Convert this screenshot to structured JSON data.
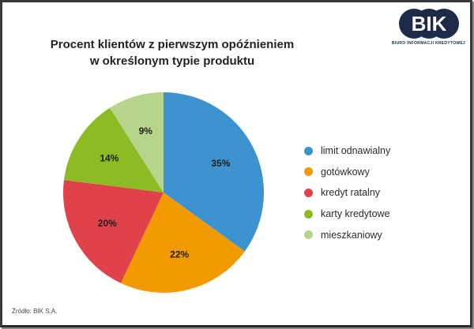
{
  "title": {
    "line1": "Procent klientów z pierwszym opóźnieniem",
    "line2": "w określonym typie produktu"
  },
  "logo": {
    "text": "BIK",
    "caption": "BIURO INFORMACJI KREDYTOWEJ",
    "color": "#1e2a4a"
  },
  "legend": {
    "items": [
      {
        "label": "limit odnawialny",
        "color": "#3d93d0"
      },
      {
        "label": "gotówkowy",
        "color": "#f29a00"
      },
      {
        "label": "kredyt ratalny",
        "color": "#e0424a"
      },
      {
        "label": "karty kredytowe",
        "color": "#8dbb24"
      },
      {
        "label": "mieszkaniowy",
        "color": "#b7d48a"
      }
    ]
  },
  "source": "Źródło: BIK S.A.",
  "chart_data": {
    "type": "pie",
    "title": "Procent klientów z pierwszym opóźnieniem w określonym typie produktu",
    "categories": [
      "limit odnawialny",
      "gotówkowy",
      "kredyt ratalny",
      "karty kredytowe",
      "mieszkaniowy"
    ],
    "values": [
      35,
      22,
      20,
      14,
      9
    ],
    "value_labels": [
      "35%",
      "22%",
      "20%",
      "14%",
      "9%"
    ],
    "colors": [
      "#3d93d0",
      "#f29a00",
      "#e0424a",
      "#8dbb24",
      "#b7d48a"
    ],
    "start_angle": "12 o'clock, clockwise",
    "legend_position": "right",
    "unit": "%",
    "source": "Źródło: BIK S.A."
  }
}
